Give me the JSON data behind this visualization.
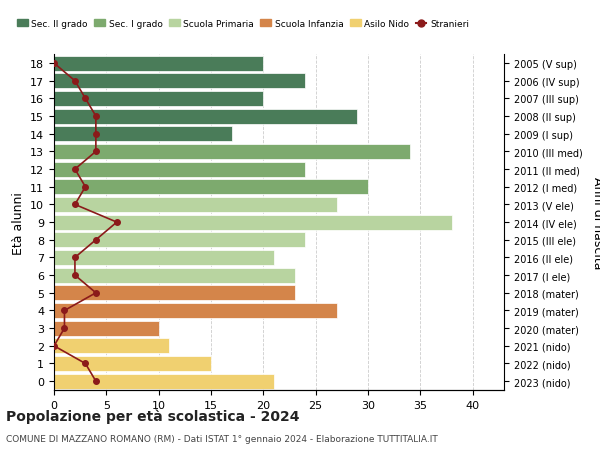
{
  "ages": [
    18,
    17,
    16,
    15,
    14,
    13,
    12,
    11,
    10,
    9,
    8,
    7,
    6,
    5,
    4,
    3,
    2,
    1,
    0
  ],
  "anni_nascita": [
    "2005 (V sup)",
    "2006 (IV sup)",
    "2007 (III sup)",
    "2008 (II sup)",
    "2009 (I sup)",
    "2010 (III med)",
    "2011 (II med)",
    "2012 (I med)",
    "2013 (V ele)",
    "2014 (IV ele)",
    "2015 (III ele)",
    "2016 (II ele)",
    "2017 (I ele)",
    "2018 (mater)",
    "2019 (mater)",
    "2020 (mater)",
    "2021 (nido)",
    "2022 (nido)",
    "2023 (nido)"
  ],
  "bar_values": [
    20,
    24,
    20,
    29,
    17,
    34,
    24,
    30,
    27,
    38,
    24,
    21,
    23,
    23,
    27,
    10,
    11,
    15,
    21
  ],
  "bar_colors": [
    "#4a7c59",
    "#4a7c59",
    "#4a7c59",
    "#4a7c59",
    "#4a7c59",
    "#7daa6e",
    "#7daa6e",
    "#7daa6e",
    "#b8d4a0",
    "#b8d4a0",
    "#b8d4a0",
    "#b8d4a0",
    "#b8d4a0",
    "#d4854a",
    "#d4854a",
    "#d4854a",
    "#f0d070",
    "#f0d070",
    "#f0d070"
  ],
  "stranieri_values": [
    0,
    2,
    3,
    4,
    4,
    4,
    2,
    3,
    2,
    6,
    4,
    2,
    2,
    4,
    1,
    1,
    0,
    3,
    4
  ],
  "xlabel": "",
  "ylabel_left": "Età alunni",
  "ylabel_right": "Anni di nascita",
  "xlim": [
    0,
    43
  ],
  "xticks": [
    0,
    5,
    10,
    15,
    20,
    25,
    30,
    35,
    40
  ],
  "title": "Popolazione per età scolastica - 2024",
  "subtitle": "COMUNE DI MAZZANO ROMANO (RM) - Dati ISTAT 1° gennaio 2024 - Elaborazione TUTTITALIA.IT",
  "legend_labels": [
    "Sec. II grado",
    "Sec. I grado",
    "Scuola Primaria",
    "Scuola Infanzia",
    "Asilo Nido",
    "Stranieri"
  ],
  "legend_colors": [
    "#4a7c59",
    "#7daa6e",
    "#b8d4a0",
    "#d4854a",
    "#f0d070",
    "#8b1a1a"
  ],
  "stranieri_color": "#8b1a1a",
  "bg_color": "#ffffff",
  "grid_color": "#cccccc"
}
